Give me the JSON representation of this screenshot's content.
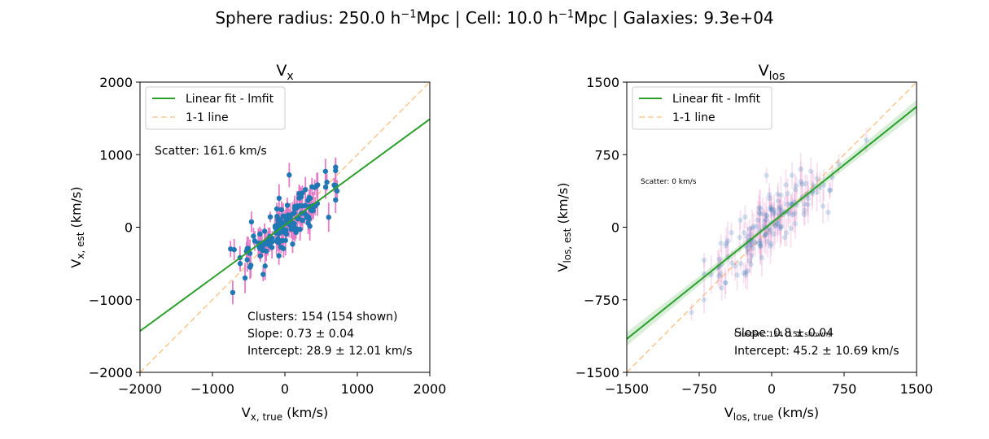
{
  "figure": {
    "suptitle_parts": [
      "Sphere radius: 250.0 h",
      "−1",
      "Mpc | Cell: 10.0 h",
      "−1",
      "Mpc | Galaxies: 9.3e+04"
    ]
  },
  "colors": {
    "fit": "#2ca02c",
    "one_to_one": "#ffbb78",
    "points": "#1f77b4",
    "errorbars": "#e377c2",
    "band": "#2ca02c"
  },
  "legend_entries": [
    "Linear fit - lmfit",
    "1-1 line"
  ],
  "chart_data": [
    {
      "type": "scatter",
      "title": "V",
      "title_sub": "x",
      "xlabel": "V",
      "xlabel_sub": "x, true",
      "xlabel_unit": " (km/s)",
      "ylabel": "V",
      "ylabel_sub": "x, est",
      "ylabel_unit": " (km/s)",
      "xlim": [
        -2000,
        2000
      ],
      "ylim": [
        -2000,
        2000
      ],
      "xticks": [
        -2000,
        -1000,
        0,
        1000,
        2000
      ],
      "yticks": [
        -2000,
        -1000,
        0,
        1000,
        2000
      ],
      "xtick_labels": [
        "−2000",
        "−1000",
        "0",
        "1000",
        "2000"
      ],
      "ytick_labels": [
        "−2000",
        "−1000",
        "0",
        "1000",
        "2000"
      ],
      "legend": "upper-left",
      "fit": {
        "slope": 0.73,
        "intercept": 28.9
      },
      "scatter_text": "Scatter: 161.6 km/s",
      "stats": [
        "Clusters: 154 (154 shown)",
        "Slope: 0.73 ± 0.04",
        "Intercept: 28.9 ± 12.01 km/s"
      ],
      "n_points": 154,
      "shown_points": 154,
      "points_sample": [
        {
          "x": -720,
          "y": -900
        },
        {
          "x": -750,
          "y": -300
        },
        {
          "x": -620,
          "y": -420
        },
        {
          "x": -550,
          "y": -700
        },
        {
          "x": -520,
          "y": -450
        },
        {
          "x": -480,
          "y": -550
        },
        {
          "x": -300,
          "y": -650
        },
        {
          "x": -80,
          "y": 400
        },
        {
          "x": 60,
          "y": 720
        },
        {
          "x": 350,
          "y": 400
        },
        {
          "x": 560,
          "y": 770
        },
        {
          "x": 580,
          "y": 620
        },
        {
          "x": 700,
          "y": 780
        },
        {
          "x": 680,
          "y": 580
        },
        {
          "x": 720,
          "y": 500
        }
      ]
    },
    {
      "type": "scatter",
      "title": "V",
      "title_sub": "los",
      "xlabel": "V",
      "xlabel_sub": "los, true",
      "xlabel_unit": " (km/s)",
      "ylabel": "V",
      "ylabel_sub": "los, est",
      "ylabel_unit": " (km/s)",
      "xlim": [
        -1500,
        1500
      ],
      "ylim": [
        -1500,
        1500
      ],
      "xticks": [
        -1500,
        -750,
        0,
        750,
        1500
      ],
      "yticks": [
        -1500,
        -750,
        0,
        750,
        1500
      ],
      "xtick_labels": [
        "−1500",
        "−750",
        "0",
        "750",
        "1500"
      ],
      "ytick_labels": [
        "−1500",
        "−750",
        "0",
        "750",
        "1500"
      ],
      "legend": "upper-left",
      "fit": {
        "slope": 0.8,
        "intercept": 45.2
      },
      "scatter_text": "Scatter: 0 km/s",
      "stats_slope": "Slope: 0.8 ± 0.04",
      "stats_clusters": "Clusters: 154 (154 shown)",
      "stats_intercept": "Intercept: 45.2 ± 10.69 km/s",
      "n_points": 154,
      "shown_points": 154,
      "points_sample": [
        {
          "x": -830,
          "y": -880
        },
        {
          "x": -700,
          "y": -750
        },
        {
          "x": 980,
          "y": 900
        },
        {
          "x": 600,
          "y": 380
        },
        {
          "x": 420,
          "y": 350
        },
        {
          "x": 300,
          "y": 600
        }
      ]
    }
  ]
}
